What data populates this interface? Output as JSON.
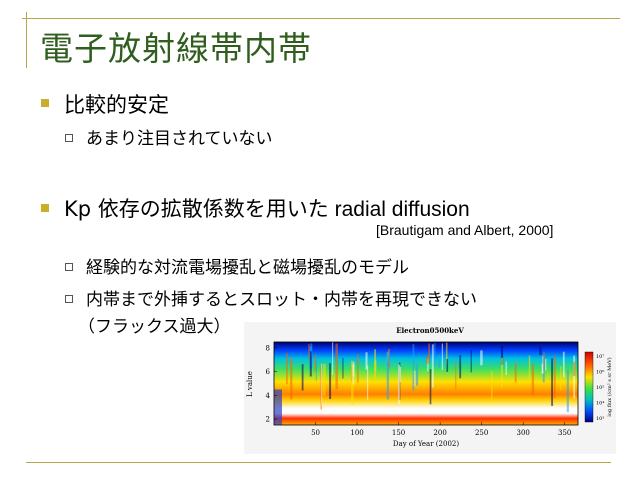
{
  "slide": {
    "title": "電子放射線帯内帯",
    "items": [
      {
        "text": "比較的安定",
        "subitems": [
          "あまり注目されていない"
        ]
      },
      {
        "text_ja": "Kp 依存の拡散係数を用いた",
        "text_en": " radial diffusion",
        "reference": "[Brautigam and Albert, 2000]",
        "subitems": [
          "経験的な対流電場擾乱と磁場擾乱のモデル",
          "内帯まで外挿するとスロット・内帯を再現できない",
          "（フラックス過大）"
        ]
      }
    ]
  },
  "chart_data": {
    "type": "heatmap",
    "title": "Electron0500keV",
    "xlabel": "Day of Year (2002)",
    "ylabel": "L value",
    "xlim": [
      0,
      366
    ],
    "ylim": [
      1.5,
      8.5
    ],
    "xticks": [
      50,
      100,
      150,
      200,
      250,
      300,
      350
    ],
    "yticks": [
      2,
      4,
      6,
      8
    ],
    "colorbar": {
      "label": "log flux (/cm² s sr MeV)",
      "ticks": [
        "10⁷",
        "10⁶",
        "10⁵",
        "10⁴",
        "10³"
      ],
      "colors": [
        "#d00000",
        "#ff5a00",
        "#ffe000",
        "#40e040",
        "#00c0c0",
        "#0050ff",
        "#000080"
      ]
    },
    "inner_belt_L": [
      1.5,
      2.3
    ],
    "outer_belt_L": [
      3.0,
      7.0
    ]
  }
}
